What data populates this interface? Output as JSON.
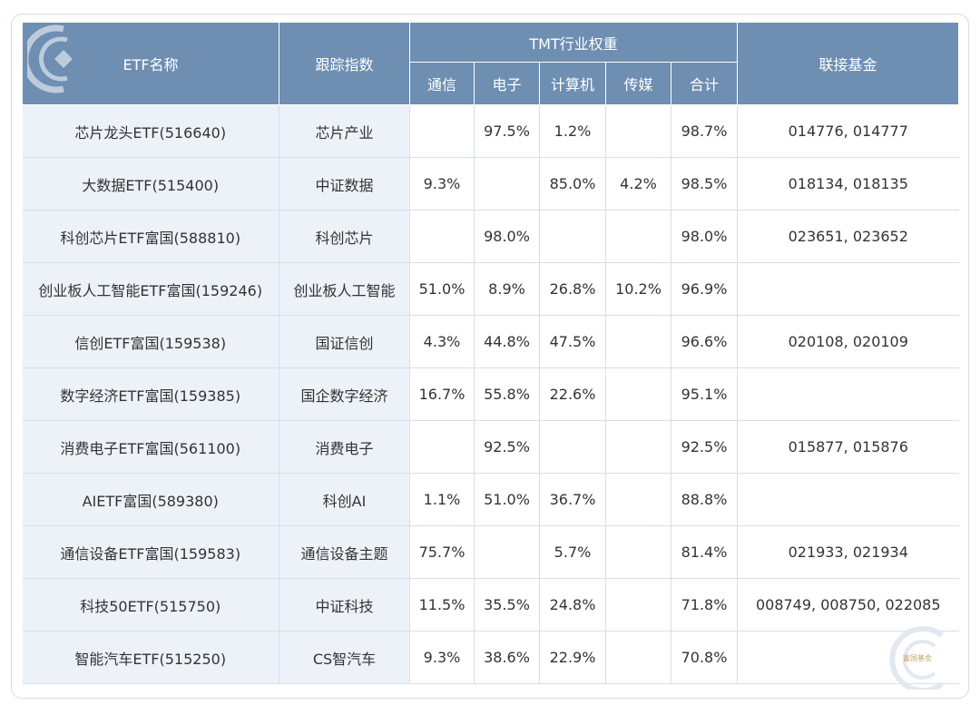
{
  "header": {
    "etf_name": "ETF名称",
    "tracking_index": "跟踪指数",
    "tmt_weight": "TMT行业权重",
    "linked_fund": "联接基金",
    "sub": [
      "通信",
      "电子",
      "计算机",
      "传媒",
      "合计"
    ]
  },
  "rows": [
    {
      "name": "芯片龙头ETF(516640)",
      "index": "芯片产业",
      "telecom": "",
      "electronics": "97.5%",
      "computer": "1.2%",
      "media": "",
      "total": "98.7%",
      "fund": "014776, 014777"
    },
    {
      "name": "大数据ETF(515400)",
      "index": "中证数据",
      "telecom": "9.3%",
      "electronics": "",
      "computer": "85.0%",
      "media": "4.2%",
      "total": "98.5%",
      "fund": "018134, 018135"
    },
    {
      "name": "科创芯片ETF富国(588810)",
      "index": "科创芯片",
      "telecom": "",
      "electronics": "98.0%",
      "computer": "",
      "media": "",
      "total": "98.0%",
      "fund": "023651, 023652"
    },
    {
      "name": "创业板人工智能ETF富国(159246)",
      "index": "创业板人工智能",
      "telecom": "51.0%",
      "electronics": "8.9%",
      "computer": "26.8%",
      "media": "10.2%",
      "total": "96.9%",
      "fund": ""
    },
    {
      "name": "信创ETF富国(159538)",
      "index": "国证信创",
      "telecom": "4.3%",
      "electronics": "44.8%",
      "computer": "47.5%",
      "media": "",
      "total": "96.6%",
      "fund": "020108, 020109"
    },
    {
      "name": "数字经济ETF富国(159385)",
      "index": "国企数字经济",
      "telecom": "16.7%",
      "electronics": "55.8%",
      "computer": "22.6%",
      "media": "",
      "total": "95.1%",
      "fund": ""
    },
    {
      "name": "消费电子ETF富国(561100)",
      "index": "消费电子",
      "telecom": "",
      "electronics": "92.5%",
      "computer": "",
      "media": "",
      "total": "92.5%",
      "fund": "015877, 015876"
    },
    {
      "name": "AIETF富国(589380)",
      "index": "科创AI",
      "telecom": "1.1%",
      "electronics": "51.0%",
      "computer": "36.7%",
      "media": "",
      "total": "88.8%",
      "fund": ""
    },
    {
      "name": "通信设备ETF富国(159583)",
      "index": "通信设备主题",
      "telecom": "75.7%",
      "electronics": "",
      "computer": "5.7%",
      "media": "",
      "total": "81.4%",
      "fund": "021933, 021934"
    },
    {
      "name": "科技50ETF(515750)",
      "index": "中证科技",
      "telecom": "11.5%",
      "electronics": "35.5%",
      "computer": "24.8%",
      "media": "",
      "total": "71.8%",
      "fund": "008749, 008750, 022085"
    },
    {
      "name": "智能汽车ETF(515250)",
      "index": "CS智汽车",
      "telecom": "9.3%",
      "electronics": "38.6%",
      "computer": "22.9%",
      "media": "",
      "total": "70.8%",
      "fund": ""
    }
  ],
  "watermark": {
    "text": "富国基金"
  },
  "colors": {
    "header_bg": "#6e8eb2",
    "name_col_bg": "#edf2f8",
    "border": "#d6dfeb"
  }
}
